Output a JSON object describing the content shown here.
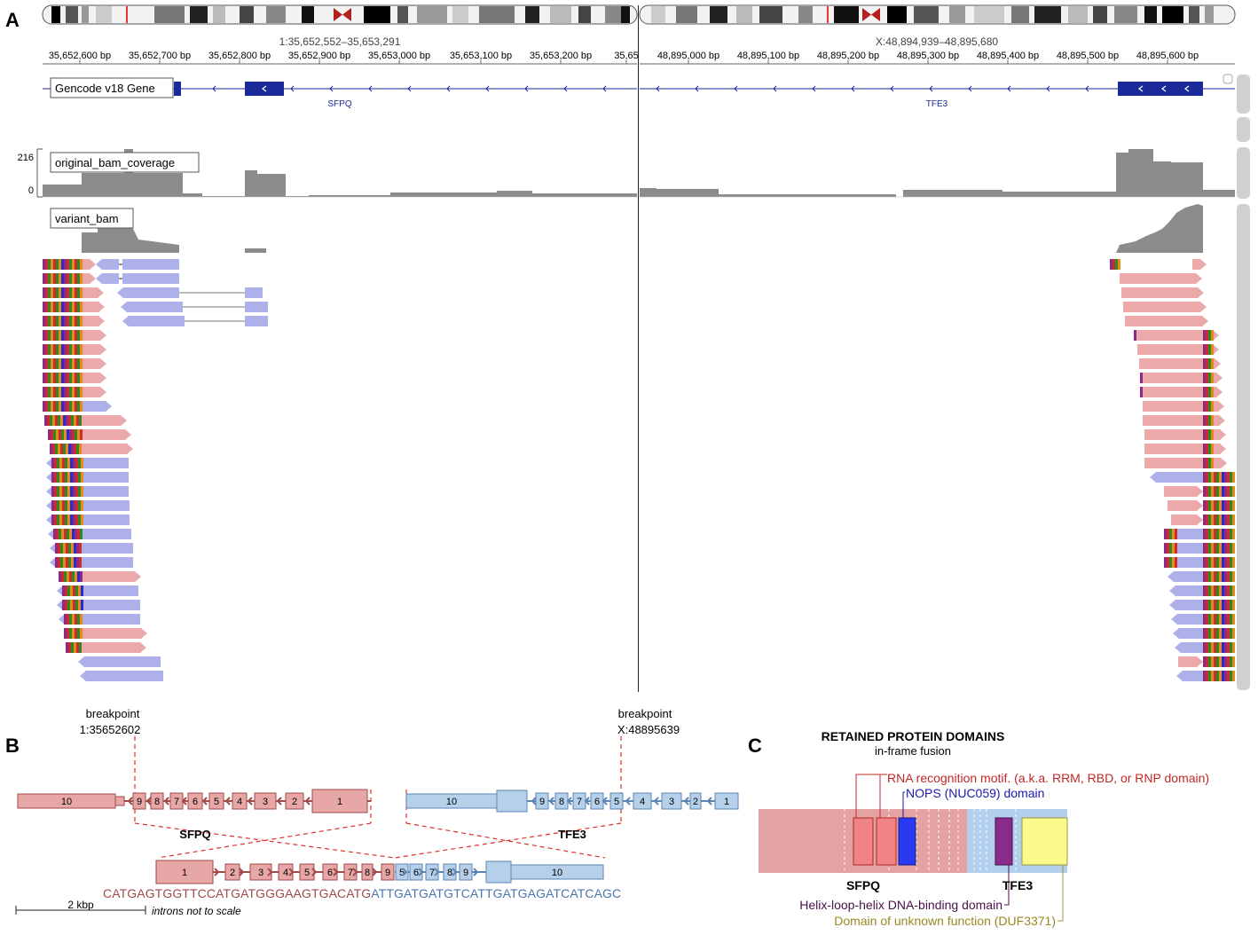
{
  "panel_labels": {
    "a": "A",
    "b": "B",
    "c": "C"
  },
  "colors": {
    "sfpq_fill": "#e8a7a7",
    "sfpq_stroke": "#a04a4a",
    "tfe3_fill": "#b6d0ea",
    "tfe3_stroke": "#5b86b4",
    "read_pink": "#eca9a9",
    "read_blue": "#aeb0ea",
    "gene_blue": "#1a2a9a",
    "coverage": "#8c8c8c",
    "dash_red": "#e0302a"
  },
  "igv": {
    "left_locus": "1:35,652,552–35,653,291",
    "right_locus": "X:48,894,939–48,895,680",
    "left_ticks": [
      "35,652,600 bp",
      "35,652,700 bp",
      "35,652,800 bp",
      "35,652,900 bp",
      "35,653,000 bp",
      "35,653,100 bp",
      "35,653,200 bp",
      "35,65"
    ],
    "right_ticks": [
      "48,895,000 bp",
      "48,895,100 bp",
      "48,895,200 bp",
      "48,895,300 bp",
      "48,895,400 bp",
      "48,895,500 bp",
      "48,895,600 bp"
    ],
    "tracks": {
      "gene": "Gencode v18 Gene",
      "coverage": "original_bam_coverage",
      "variant": "variant_bam"
    },
    "gene_left": "SFPQ",
    "gene_right": "TFE3",
    "coverage_max": "216",
    "coverage_min": "0"
  },
  "panel_b": {
    "bp_left": {
      "line1": "breakpoint",
      "line2": "1:35652602"
    },
    "bp_right": {
      "line1": "breakpoint",
      "line2": "X:48895639"
    },
    "sfpq_label": "SFPQ",
    "tfe3_label": "TFE3",
    "sfpq_exons": [
      "10",
      "9",
      "8",
      "7",
      "6",
      "5",
      "4",
      "3",
      "2",
      "1"
    ],
    "tfe3_exons": [
      "10",
      "9",
      "8",
      "7",
      "6",
      "5",
      "4",
      "3",
      "2",
      "1"
    ],
    "fusion_sfpq_exons": [
      "1",
      "2",
      "3",
      "4",
      "5",
      "6",
      "7",
      "8",
      "9"
    ],
    "fusion_tfe3_exons": [
      "5",
      "6",
      "7",
      "8",
      "9",
      "10"
    ],
    "seq_left": "CATGAGTGGTTCCATGATGGGAAGTGACATG",
    "seq_right": "ATTGATGATGTCATTGATGAGATCATCAGC",
    "scale_label": "2 kbp",
    "scale_note": "introns not to scale"
  },
  "panel_c": {
    "title": "RETAINED PROTEIN DOMAINS",
    "subtitle": "in-frame fusion",
    "rrm": "RNA recognition motif. (a.k.a. RRM, RBD, or RNP domain)",
    "nops": "NOPS (NUC059) domain",
    "hlh": "Helix-loop-helix DNA-binding domain",
    "duf": "Domain of unknown function (DUF3371)",
    "sfpq_label": "SFPQ",
    "tfe3_label": "TFE3"
  }
}
